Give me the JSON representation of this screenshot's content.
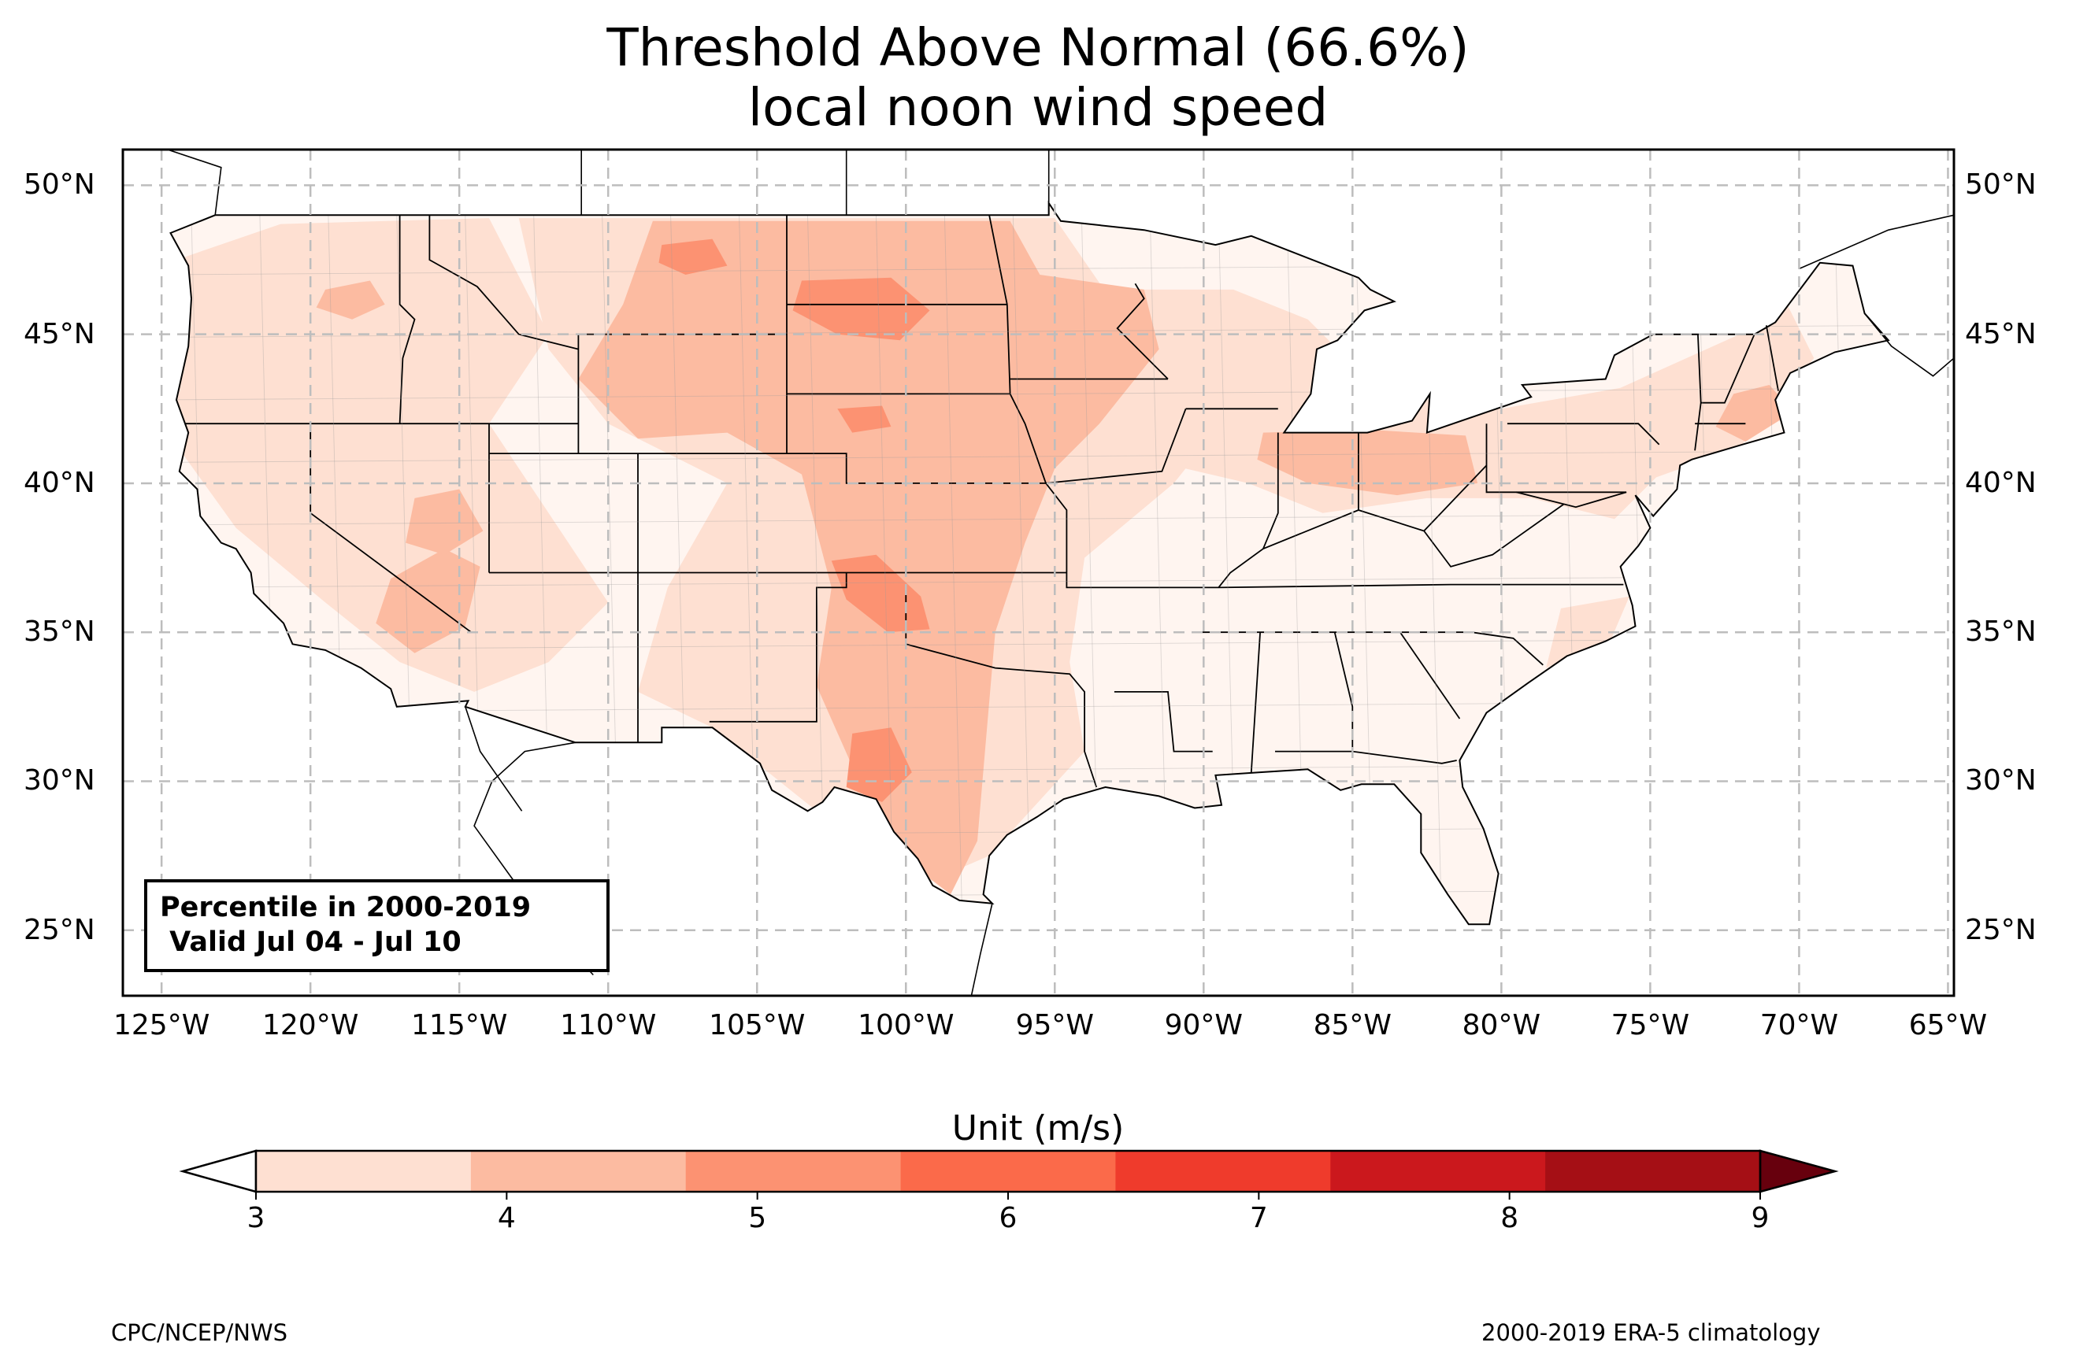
{
  "title": {
    "line1": "Threshold Above Normal (66.6%)",
    "line2": "local noon wind speed"
  },
  "map": {
    "extent": {
      "lon_min": -126.3,
      "lon_max": -64.8,
      "lat_min": 22.8,
      "lat_max": 51.2
    },
    "lat_ticks": [
      {
        "value": 50,
        "label": "50°N"
      },
      {
        "value": 45,
        "label": "45°N"
      },
      {
        "value": 40,
        "label": "40°N"
      },
      {
        "value": 35,
        "label": "35°N"
      },
      {
        "value": 30,
        "label": "30°N"
      },
      {
        "value": 25,
        "label": "25°N"
      }
    ],
    "lon_ticks": [
      {
        "value": -125,
        "label": "125°W"
      },
      {
        "value": -120,
        "label": "120°W"
      },
      {
        "value": -115,
        "label": "115°W"
      },
      {
        "value": -110,
        "label": "110°W"
      },
      {
        "value": -105,
        "label": "105°W"
      },
      {
        "value": -100,
        "label": "100°W"
      },
      {
        "value": -95,
        "label": "95°W"
      },
      {
        "value": -90,
        "label": "90°W"
      },
      {
        "value": -85,
        "label": "85°W"
      },
      {
        "value": -80,
        "label": "80°W"
      },
      {
        "value": -75,
        "label": "75°W"
      },
      {
        "value": -70,
        "label": "70°W"
      },
      {
        "value": -65,
        "label": "65°W"
      }
    ],
    "gridlines": true,
    "land_fill": "#fff5f0",
    "shading": [
      {
        "level": "3-4",
        "color": "#fee0d2",
        "regions": [
          {
            "name": "west-broad",
            "pts": [
              [
                -124.5,
                47.5
              ],
              [
                -121,
                48.7
              ],
              [
                -114,
                48.9
              ],
              [
                -112,
                45
              ],
              [
                -114,
                42
              ],
              [
                -112,
                39
              ],
              [
                -110,
                36
              ],
              [
                -112,
                34
              ],
              [
                -114.5,
                33
              ],
              [
                -117,
                34
              ],
              [
                -119.5,
                36
              ],
              [
                -122.5,
                38.5
              ],
              [
                -124.3,
                41
              ],
              [
                -124.8,
                44.5
              ]
            ]
          },
          {
            "name": "central-plains",
            "pts": [
              [
                -113,
                48.9
              ],
              [
                -95,
                48.9
              ],
              [
                -93,
                46
              ],
              [
                -90.5,
                44
              ],
              [
                -89,
                42.5
              ],
              [
                -91,
                40
              ],
              [
                -94,
                37.5
              ],
              [
                -94.5,
                34
              ],
              [
                -94,
                31
              ],
              [
                -97.2,
                27.5
              ],
              [
                -99.5,
                26.5
              ],
              [
                -103,
                29
              ],
              [
                -106.5,
                31.8
              ],
              [
                -109,
                33
              ],
              [
                -108,
                36.5
              ],
              [
                -106,
                40
              ],
              [
                -110,
                42
              ],
              [
                -112,
                44.5
              ]
            ]
          },
          {
            "name": "great-lakes-east",
            "pts": [
              [
                -92.5,
                46.5
              ],
              [
                -89,
                46.5
              ],
              [
                -86.5,
                45.5
              ],
              [
                -84,
                43
              ],
              [
                -80,
                42.5
              ],
              [
                -76,
                43.2
              ],
              [
                -72,
                45
              ],
              [
                -70.5,
                46.2
              ],
              [
                -69.5,
                44.2
              ],
              [
                -72,
                41.2
              ],
              [
                -74.8,
                40.2
              ],
              [
                -76.2,
                38.8
              ],
              [
                -79,
                39.5
              ],
              [
                -82.5,
                39.5
              ],
              [
                -86,
                39
              ],
              [
                -88.5,
                40
              ],
              [
                -91.5,
                40.7
              ]
            ]
          },
          {
            "name": "se-coast",
            "pts": [
              [
                -78,
                35.8
              ],
              [
                -75.7,
                36.2
              ],
              [
                -76.3,
                34.8
              ],
              [
                -78.5,
                33.8
              ]
            ]
          }
        ]
      },
      {
        "level": "4-5",
        "color": "#fcbba1",
        "regions": [
          {
            "name": "plains-core",
            "pts": [
              [
                -108.5,
                48.8
              ],
              [
                -96.5,
                48.8
              ],
              [
                -95.5,
                47
              ],
              [
                -92,
                46.5
              ],
              [
                -91.5,
                44.5
              ],
              [
                -93.5,
                42
              ],
              [
                -95,
                40.5
              ],
              [
                -96,
                38
              ],
              [
                -97,
                35
              ],
              [
                -97.3,
                31.5
              ],
              [
                -97.6,
                28
              ],
              [
                -98.5,
                26.2
              ],
              [
                -100.2,
                27.5
              ],
              [
                -101.8,
                30.5
              ],
              [
                -103,
                33.2
              ],
              [
                -102.5,
                36.5
              ],
              [
                -103.5,
                40.3
              ],
              [
                -106,
                41.7
              ],
              [
                -109,
                41.5
              ],
              [
                -111,
                43.5
              ],
              [
                -109.5,
                46
              ]
            ]
          },
          {
            "name": "mojave",
            "pts": [
              [
                -117.3,
                36.8
              ],
              [
                -115.5,
                37.8
              ],
              [
                -114.3,
                37.2
              ],
              [
                -114.8,
                35.2
              ],
              [
                -116.5,
                34.3
              ],
              [
                -117.8,
                35.3
              ]
            ]
          },
          {
            "name": "great-basin",
            "pts": [
              [
                -116.5,
                39.5
              ],
              [
                -115,
                39.8
              ],
              [
                -114.2,
                38.4
              ],
              [
                -115.5,
                37.6
              ],
              [
                -116.8,
                38
              ]
            ]
          },
          {
            "name": "ohio-valley",
            "pts": [
              [
                -88,
                41.7
              ],
              [
                -84.5,
                41.8
              ],
              [
                -81.2,
                41.6
              ],
              [
                -80.8,
                40
              ],
              [
                -83.5,
                39.6
              ],
              [
                -86.5,
                40
              ],
              [
                -88.2,
                40.8
              ]
            ]
          },
          {
            "name": "northeast",
            "pts": [
              [
                -72.2,
                43
              ],
              [
                -71,
                43.3
              ],
              [
                -70.2,
                42.4
              ],
              [
                -71.8,
                41.4
              ],
              [
                -72.8,
                41.9
              ]
            ]
          },
          {
            "name": "pacific-nw",
            "pts": [
              [
                -119.5,
                46.5
              ],
              [
                -118,
                46.8
              ],
              [
                -117.5,
                46
              ],
              [
                -118.6,
                45.5
              ],
              [
                -119.8,
                45.9
              ]
            ]
          }
        ]
      },
      {
        "level": "5-6",
        "color": "#fc9272",
        "regions": [
          {
            "name": "dakotas",
            "pts": [
              [
                -103.5,
                46.8
              ],
              [
                -100.5,
                46.9
              ],
              [
                -99.2,
                45.8
              ],
              [
                -100.2,
                44.8
              ],
              [
                -102.3,
                45
              ],
              [
                -103.8,
                45.8
              ]
            ]
          },
          {
            "name": "montana-ne",
            "pts": [
              [
                -108.2,
                48
              ],
              [
                -106.5,
                48.2
              ],
              [
                -106,
                47.3
              ],
              [
                -107.4,
                47
              ],
              [
                -108.3,
                47.4
              ]
            ]
          },
          {
            "name": "nebraska",
            "pts": [
              [
                -102.3,
                42.5
              ],
              [
                -100.8,
                42.6
              ],
              [
                -100.5,
                41.9
              ],
              [
                -101.8,
                41.7
              ]
            ]
          },
          {
            "name": "oklahoma",
            "pts": [
              [
                -102.5,
                37.4
              ],
              [
                -101,
                37.6
              ],
              [
                -99.5,
                36.2
              ],
              [
                -99.2,
                35.1
              ],
              [
                -100.6,
                35
              ],
              [
                -102,
                36.1
              ]
            ]
          },
          {
            "name": "texas",
            "pts": [
              [
                -101.8,
                31.6
              ],
              [
                -100.5,
                31.8
              ],
              [
                -99.8,
                30.3
              ],
              [
                -100.8,
                29.3
              ],
              [
                -102,
                29.8
              ]
            ]
          }
        ]
      }
    ],
    "border_color": "#000000",
    "county_color": "#9a9a9a"
  },
  "legend_box": {
    "line1": "Percentile in 2000-2019",
    "line2": " Valid Jul 04 - Jul 10"
  },
  "colorbar": {
    "label": "Unit (m/s)",
    "ticks": [
      "3",
      "4",
      "5",
      "6",
      "7",
      "8",
      "9"
    ],
    "colors": [
      "#fee0d2",
      "#fcbba1",
      "#fc9272",
      "#fb6a4a",
      "#ef3b2c",
      "#cb181d",
      "#a50f15"
    ],
    "under_color": "#ffffff",
    "over_color": "#67000d"
  },
  "footer": {
    "left": "CPC/NCEP/NWS",
    "right": "2000-2019 ERA-5 climatology"
  }
}
